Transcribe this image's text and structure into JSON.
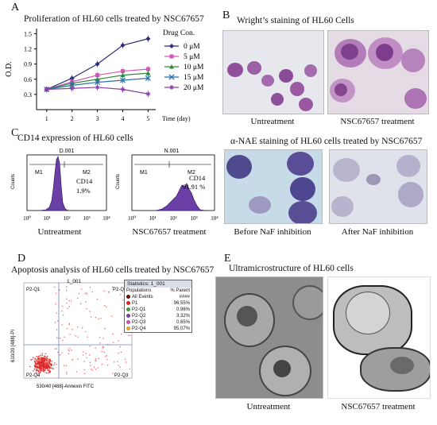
{
  "panelA": {
    "label": "A",
    "title": "Proliferation of HL60 cells treated by NSC67657",
    "legend_title": "Drug Con.",
    "ylabel": "O.D.",
    "xlabel": "Time (day)"
  },
  "chart_data": {
    "type": "line",
    "title": "Proliferation of HL60 cells treated by NSC67657",
    "xlabel": "Time (day)",
    "ylabel": "O.D.",
    "x": [
      1,
      2,
      3,
      4,
      5
    ],
    "ylim": [
      0,
      1.6
    ],
    "yticks": [
      0.3,
      0.6,
      0.9,
      1.2,
      1.5
    ],
    "grid": false,
    "legend_position": "right",
    "series": [
      {
        "name": "0 μM",
        "color": "#2b2b7a",
        "marker": "diamond",
        "values": [
          0.4,
          0.62,
          0.9,
          1.27,
          1.4
        ]
      },
      {
        "name": "5 μM",
        "color": "#d455b8",
        "marker": "square",
        "values": [
          0.4,
          0.55,
          0.68,
          0.76,
          0.8
        ]
      },
      {
        "name": "10 μM",
        "color": "#2e8b3d",
        "marker": "triangle",
        "values": [
          0.4,
          0.52,
          0.6,
          0.68,
          0.72
        ]
      },
      {
        "name": "15 μM",
        "color": "#2a6fa8",
        "marker": "x",
        "values": [
          0.4,
          0.48,
          0.54,
          0.58,
          0.62
        ]
      },
      {
        "name": "20 μM",
        "color": "#8a3fa0",
        "marker": "star",
        "values": [
          0.4,
          0.42,
          0.44,
          0.4,
          0.31
        ]
      }
    ]
  },
  "panelB": {
    "label": "B",
    "title": "Wright’s staining of HL60 Cells",
    "caption_left": "Untreatment",
    "caption_right": "NSC67657 treatment",
    "nae_title": "α-NAE staining of HL60 cells treated by NSC67657",
    "nae_caption_left": "Before NaF inhibition",
    "nae_caption_right": "After NaF inhibition"
  },
  "panelC": {
    "label": "C",
    "title": "CD14 expression of HL60 cells",
    "left": {
      "gate": "D.001",
      "m1": "M1",
      "m2": "M2",
      "marker": "CD14",
      "percent": "1.9%",
      "caption": "Untreatment"
    },
    "right": {
      "gate": "N.001",
      "m1": "M1",
      "m2": "M2",
      "marker": "CD14",
      "percent": "91.91 %",
      "caption": "NSC67657 treatment"
    },
    "ylabel": "Counts",
    "xticks": [
      "10⁰",
      "10¹",
      "10²",
      "10³",
      "10⁴"
    ]
  },
  "panelD": {
    "label": "D",
    "title": "Apoptosis analysis of HL60 cells treated by NSC67657",
    "sample": "1_001",
    "ylabel": "610/20 [488]-PI",
    "xlabel": "530/40 [488]-Annexin FITC",
    "quadrants": {
      "q1": "P2-Q1",
      "q2": "P2-Q2",
      "q3": "P2-Q3",
      "q4": "P2-Q4"
    },
    "stats": {
      "header": "Statistics: 1_001",
      "col1": "Populations",
      "col2": "% Parent",
      "rows": [
        {
          "name": "All Events",
          "value": "####",
          "color": "#5a1010"
        },
        {
          "name": "P1",
          "value": "96.55%",
          "color": "#e02020"
        },
        {
          "name": "P2-Q1",
          "value": "0.96%",
          "color": "#3a9a3a"
        },
        {
          "name": "P2-Q2",
          "value": "3.32%",
          "color": "#7a3a9a"
        },
        {
          "name": "P2-Q3",
          "value": "0.65%",
          "color": "#c04fb0"
        },
        {
          "name": "P2-Q4",
          "value": "95.07%",
          "color": "#e8a020"
        }
      ]
    }
  },
  "panelE": {
    "label": "E",
    "title": "Ultramicrostructure of HL60 cells",
    "caption_left": "Untreatment",
    "caption_right": "NSC67657 treatment"
  }
}
